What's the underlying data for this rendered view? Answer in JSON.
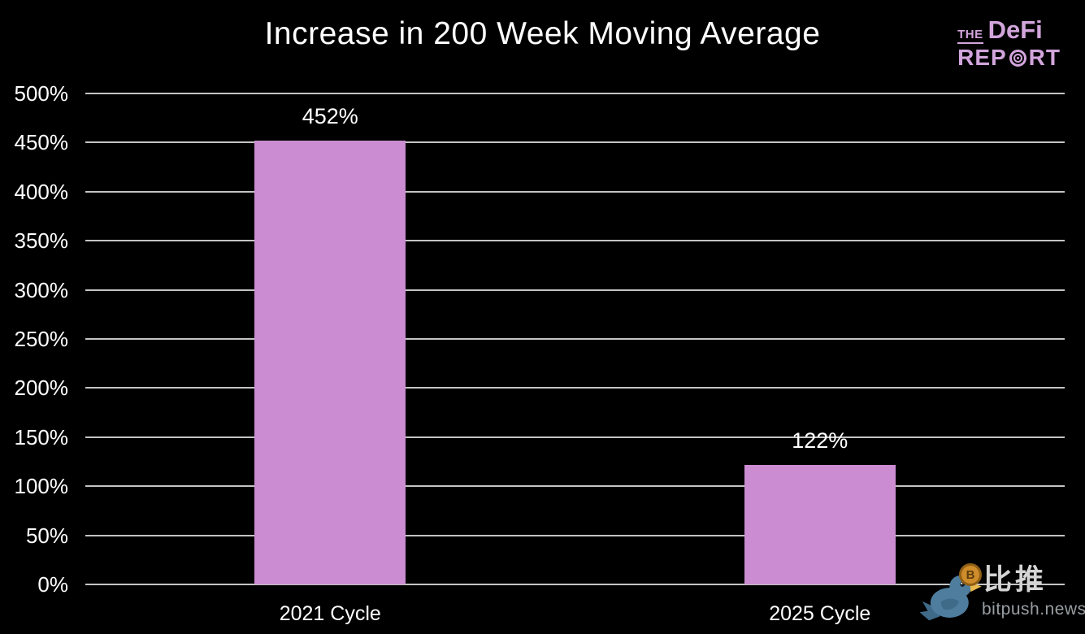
{
  "title": "Increase in 200 Week Moving Average",
  "logo": {
    "the": "THE",
    "defi": "DeFi",
    "report_pre": "REP",
    "report_post": "RT"
  },
  "watermark": {
    "cjk": "比推",
    "site": "bitpush.news",
    "coin_symbol": "B"
  },
  "colors": {
    "background": "#000000",
    "text": "#ffffff",
    "bar": "#cb8cd1",
    "gridline": "#c4c4c4",
    "logo": "#d2a5dc",
    "watermark_text": "#d4d4d4",
    "watermark_site": "#989ea2",
    "bird": "#4e7d9e",
    "bird_wing": "#3f6a88",
    "beak": "#e9b94d",
    "coin": "#cf8c2a"
  },
  "chart_data": {
    "type": "bar",
    "title": "Increase in 200 Week Moving Average",
    "categories": [
      "2021 Cycle",
      "2025 Cycle"
    ],
    "values": [
      452,
      122
    ],
    "value_labels": [
      "452%",
      "122%"
    ],
    "xlabel": "",
    "ylabel": "",
    "ylim": [
      0,
      500
    ],
    "ytick_step": 50,
    "ytick_labels": [
      "0%",
      "50%",
      "100%",
      "150%",
      "200%",
      "250%",
      "300%",
      "350%",
      "400%",
      "450%",
      "500%"
    ],
    "grid": true,
    "legend": false
  }
}
